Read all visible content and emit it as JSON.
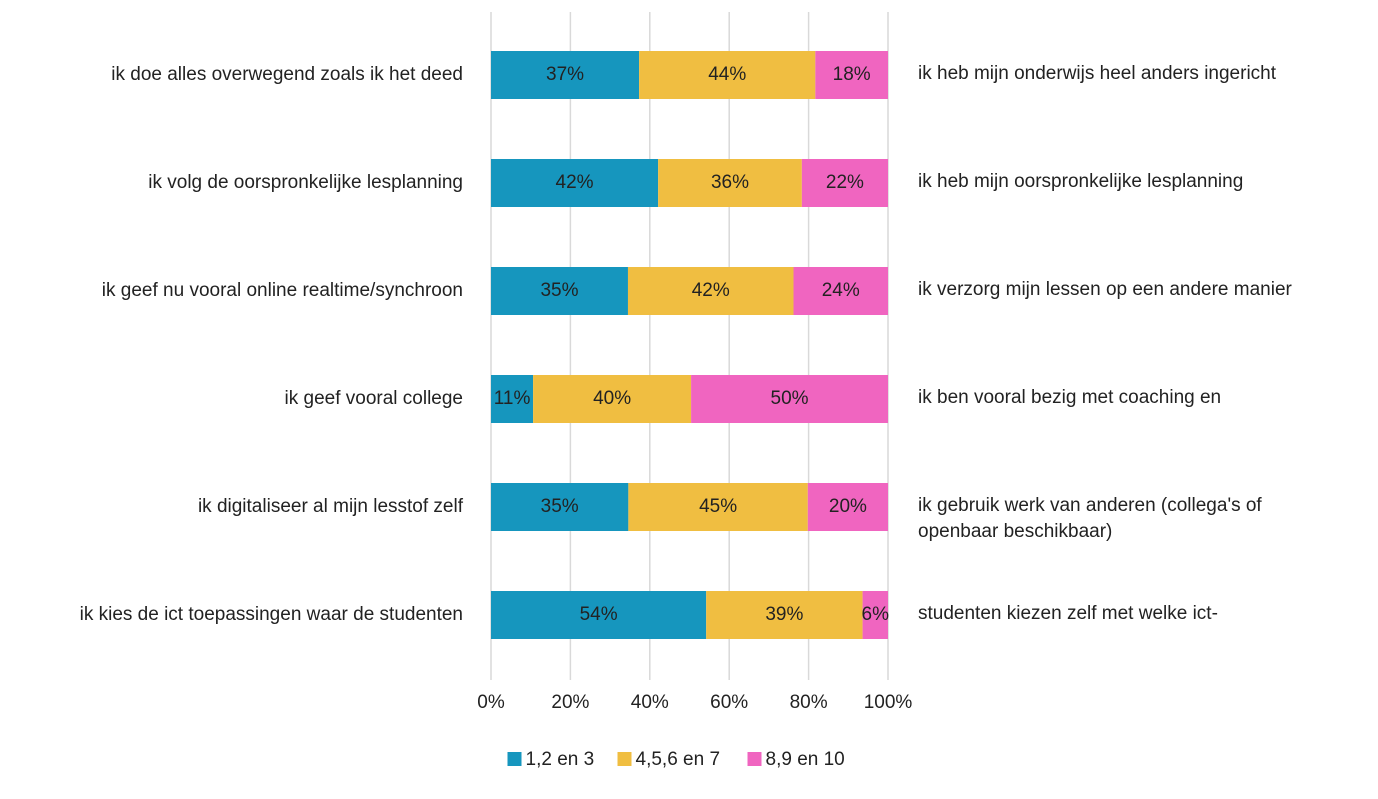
{
  "chart_data": {
    "type": "stacked_barh",
    "categories": [
      "ik doe alles overwegend zoals ik het deed",
      "ik volg de oorspronkelijke lesplanning",
      "ik geef nu vooral online realtime/synchroon",
      "ik geef vooral college",
      "ik digitaliseer al mijn lesstof zelf",
      "ik kies de ict toepassingen waar de studenten"
    ],
    "categories_right": [
      "ik heb mijn onderwijs heel anders ingericht",
      "ik heb mijn oorspronkelijke lesplanning",
      "ik verzorg mijn lessen op een andere manier",
      "ik ben vooral bezig met coaching en",
      "ik gebruik werk van anderen (collega's of\nopenbaar beschikbaar)",
      "studenten kiezen zelf met welke ict-"
    ],
    "series": [
      {
        "name": "1,2 en 3",
        "color": "#1696be",
        "values": [
          37.3,
          42.1,
          34.5,
          10.6,
          34.6,
          54.2
        ],
        "value_labels": [
          "37%",
          "42%",
          "35%",
          "11%",
          "35%",
          "54%"
        ]
      },
      {
        "name": "4,5,6 en 7",
        "color": "#f0be41",
        "values": [
          44.4,
          36.2,
          41.7,
          39.8,
          45.2,
          39.4
        ],
        "value_labels": [
          "44%",
          "36%",
          "42%",
          "40%",
          "45%",
          "39%"
        ]
      },
      {
        "name": "8,9 en 10",
        "color": "#f065c0",
        "values": [
          18.3,
          21.7,
          23.8,
          49.6,
          20.2,
          6.4
        ],
        "value_labels": [
          "18%",
          "22%",
          "24%",
          "50%",
          "20%",
          "6%"
        ]
      }
    ],
    "xlim": [
      0,
      100
    ],
    "xticks": [
      {
        "value": 0,
        "label": "0%"
      },
      {
        "value": 20,
        "label": "20%"
      },
      {
        "value": 40,
        "label": "40%"
      },
      {
        "value": 60,
        "label": "60%"
      },
      {
        "value": 80,
        "label": "80%"
      },
      {
        "value": 100,
        "label": "100%"
      }
    ],
    "grid": true,
    "legend": "bottom"
  }
}
